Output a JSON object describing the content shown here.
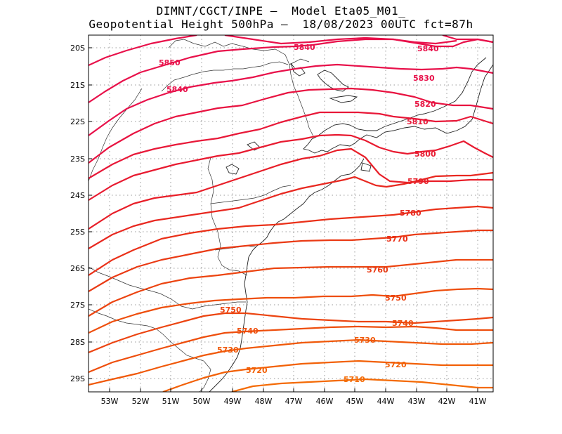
{
  "header": {
    "line1": "DIMNT/CGCT/INPE –  Model Eta05_M01_",
    "line2": "Geopotential Height 500hPa –  18/08/2023 00UTC fct=87h"
  },
  "axes": {
    "lat_labels": [
      "20S",
      "21S",
      "22S",
      "23S",
      "24S",
      "25S",
      "26S",
      "27S",
      "28S",
      "29S"
    ],
    "lon_labels": [
      "53W",
      "52W",
      "51W",
      "50W",
      "49W",
      "48W",
      "47W",
      "46W",
      "45W",
      "44W",
      "43W",
      "42W",
      "41W"
    ]
  },
  "contour_labels": [
    {
      "text": "5850",
      "color": "#e8104a"
    },
    {
      "text": "5840",
      "color": "#e8104a"
    },
    {
      "text": "5840",
      "color": "#e8104a"
    },
    {
      "text": "5840",
      "color": "#e8104a"
    },
    {
      "text": "5830",
      "color": "#e8104a"
    },
    {
      "text": "5820",
      "color": "#e81240"
    },
    {
      "text": "5810",
      "color": "#e81838"
    },
    {
      "text": "5800",
      "color": "#e81a30"
    },
    {
      "text": "5790",
      "color": "#e81e28"
    },
    {
      "text": "5780",
      "color": "#e82820"
    },
    {
      "text": "5770",
      "color": "#ea3018"
    },
    {
      "text": "5760",
      "color": "#ea3a14"
    },
    {
      "text": "5750",
      "color": "#ec4410"
    },
    {
      "text": "5750",
      "color": "#ec4410"
    },
    {
      "text": "5740",
      "color": "#ee4e0c"
    },
    {
      "text": "5740",
      "color": "#ee4e0c"
    },
    {
      "text": "5730",
      "color": "#f05808"
    },
    {
      "text": "5730",
      "color": "#f05808"
    },
    {
      "text": "5720",
      "color": "#f26006"
    },
    {
      "text": "5720",
      "color": "#f26006"
    },
    {
      "text": "5710",
      "color": "#f46a04"
    }
  ]
}
